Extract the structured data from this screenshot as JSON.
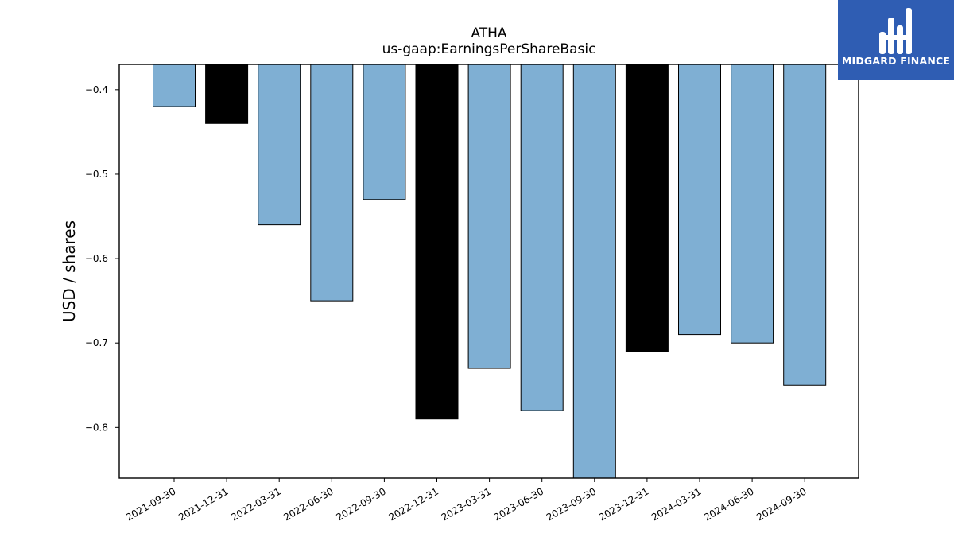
{
  "chart_data": {
    "type": "bar",
    "title": "ATHA",
    "subtitle": "us-gaap:EarningsPerShareBasic",
    "xlabel": "",
    "ylabel": "USD / shares",
    "categories": [
      "2021-09-30",
      "2021-12-31",
      "2022-03-31",
      "2022-06-30",
      "2022-09-30",
      "2022-12-31",
      "2023-03-31",
      "2023-06-30",
      "2023-09-30",
      "2023-12-31",
      "2024-03-31",
      "2024-06-30",
      "2024-09-30"
    ],
    "values": [
      -0.42,
      -0.44,
      -0.56,
      -0.65,
      -0.53,
      -0.79,
      -0.73,
      -0.78,
      -0.86,
      -0.71,
      -0.69,
      -0.7,
      -0.75
    ],
    "highlighted": [
      false,
      true,
      false,
      false,
      false,
      true,
      false,
      false,
      false,
      true,
      false,
      false,
      false
    ],
    "colors": {
      "default": "#7fafd3",
      "highlight": "#000000",
      "edge": "#000000"
    },
    "ylim": [
      -0.86,
      -0.37
    ],
    "yticks": [
      -0.4,
      -0.5,
      -0.6,
      -0.7,
      -0.8
    ],
    "ytick_labels": [
      "−0.4",
      "−0.5",
      "−0.6",
      "−0.7",
      "−0.8"
    ],
    "grid": false,
    "legend": "none"
  },
  "logo": {
    "text": "MIDGARD FINANCE",
    "background": "#2f5db3"
  }
}
